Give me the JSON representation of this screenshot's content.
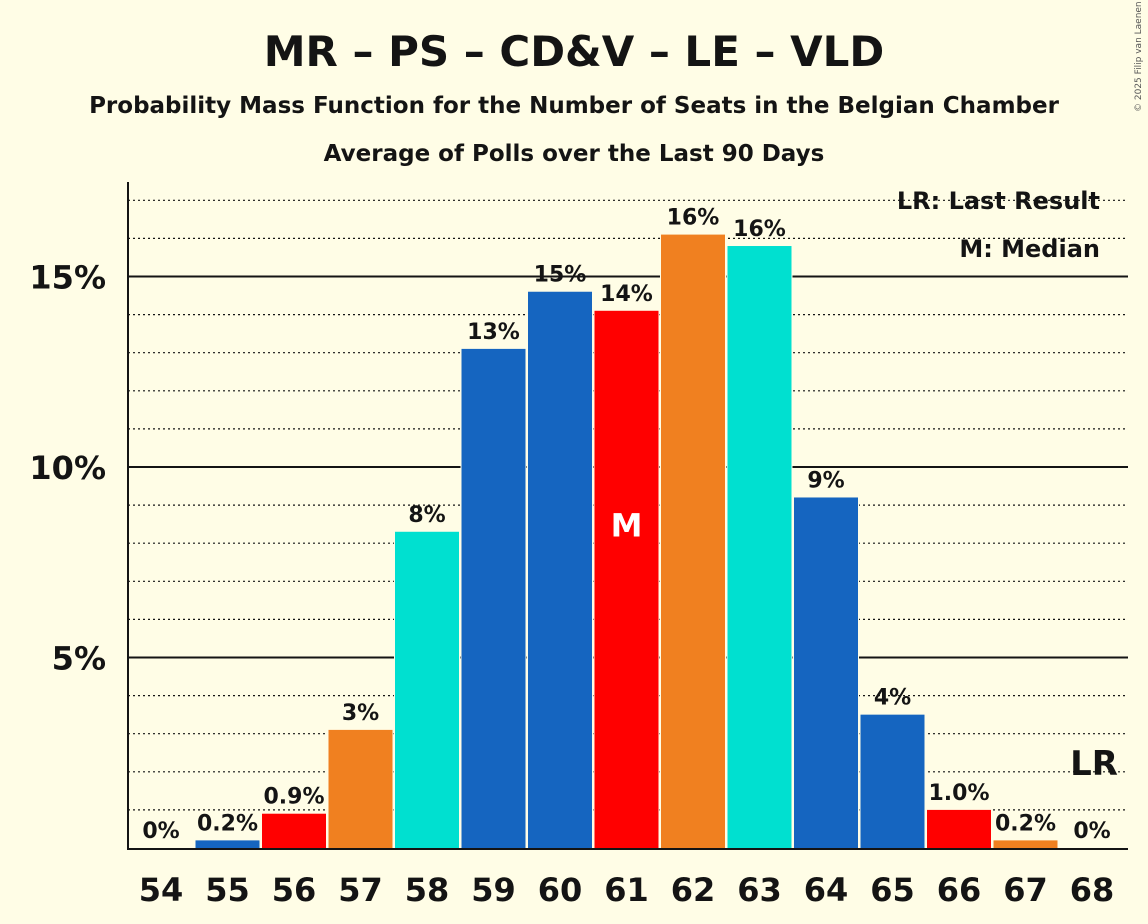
{
  "chart_data": {
    "type": "bar",
    "title": "MR – PS – CD&V – LE – VLD",
    "subtitle": "Probability Mass Function for the Number of Seats in the Belgian Chamber",
    "subtitle2": "Average of Polls over the Last 90 Days",
    "copyright": "© 2025 Filip van Laenen",
    "legend": {
      "lr": "LR: Last Result",
      "median": "M: Median"
    },
    "xlabel": "",
    "ylabel": "",
    "ylim": [
      0,
      17.5
    ],
    "yticks": [
      {
        "value": 5,
        "label": "5%"
      },
      {
        "value": 10,
        "label": "10%"
      },
      {
        "value": 15,
        "label": "15%"
      }
    ],
    "minor_grid_step": 1,
    "categories": [
      "54",
      "55",
      "56",
      "57",
      "58",
      "59",
      "60",
      "61",
      "62",
      "63",
      "64",
      "65",
      "66",
      "67",
      "68"
    ],
    "values": [
      0,
      0.2,
      0.9,
      3.1,
      8.3,
      13.1,
      14.6,
      14.1,
      16.1,
      15.8,
      9.2,
      3.5,
      1.0,
      0.2,
      0
    ],
    "labels": [
      "0%",
      "0.2%",
      "0.9%",
      "3%",
      "8%",
      "13%",
      "15%",
      "14%",
      "16%",
      "16%",
      "9%",
      "4%",
      "1.0%",
      "0.2%",
      "0%"
    ],
    "colors": [
      "#1565c0",
      "#1565c0",
      "#ff0000",
      "#f08020",
      "#00e0d0",
      "#1565c0",
      "#1565c0",
      "#ff0000",
      "#f08020",
      "#00e0d0",
      "#1565c0",
      "#1565c0",
      "#ff0000",
      "#f08020",
      "#00e0d0"
    ],
    "median_category": "61",
    "median_marker": "M",
    "last_result_category": "68",
    "last_result_marker": "LR"
  }
}
